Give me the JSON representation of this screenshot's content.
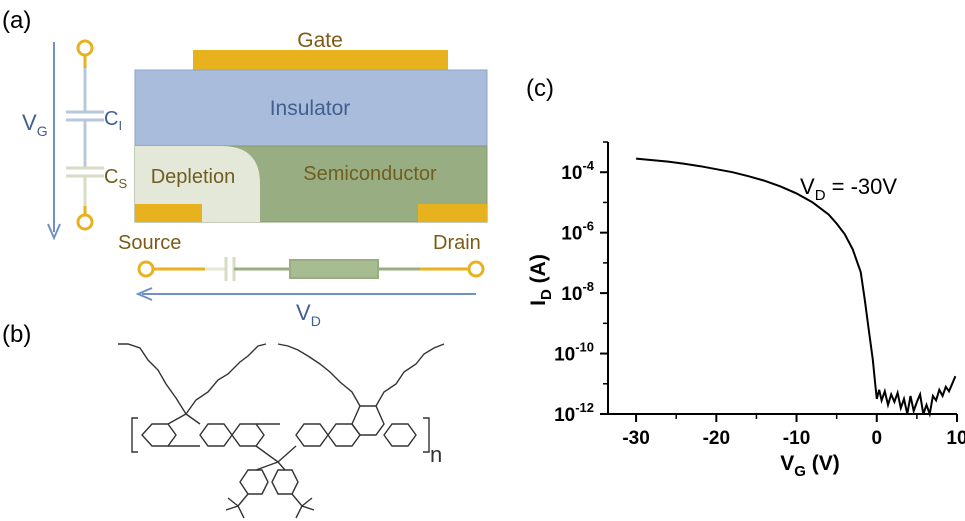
{
  "panels": {
    "a": "(a)",
    "b": "(b)",
    "c": "(c)"
  },
  "device": {
    "gate": "Gate",
    "insulator": "Insulator",
    "depletion": "Depletion",
    "semiconductor": "Semiconductor",
    "source": "Source",
    "drain": "Drain",
    "vg_main": "V",
    "vg_sub": "G",
    "ci_main": "C",
    "ci_sub": "I",
    "cs_main": "C",
    "cs_sub": "S",
    "vd_main": "V",
    "vd_sub": "D"
  },
  "colors": {
    "gold": "#E8B21E",
    "insulator": "#A9BCDC",
    "semiconductor": "#98AE82",
    "depletion": "#E3E8D8",
    "text_brown": "#7D5B16",
    "text_blue": "#41608F",
    "text_olive": "#6F5E20",
    "arrow_blue": "#6F91C6",
    "cap_gray": "#B9C7DC"
  },
  "molecule": {
    "repeat_subscript": "n"
  },
  "chart_data": {
    "type": "line",
    "title": "",
    "xlabel_main": "V",
    "xlabel_sub": "G",
    "xlabel_unit": " (V)",
    "ylabel_main": "I",
    "ylabel_sub": "D",
    "ylabel_unit": " (A)",
    "xlim": [
      -33.5,
      10
    ],
    "ylim_log10": [
      -12,
      -3
    ],
    "yscale": "log",
    "xticks": [
      -30,
      -20,
      -10,
      0,
      10
    ],
    "yticks_exp": [
      -12,
      -10,
      -8,
      -6,
      -4
    ],
    "xtick_labels": [
      "-30",
      "-20",
      "-10",
      "0",
      "10"
    ],
    "ytick_labels": [
      "10",
      "10",
      "10",
      "10",
      "10"
    ],
    "ytick_exps": [
      "-12",
      "-10",
      "-8",
      "-6",
      "-4"
    ],
    "annotation_main": "V",
    "annotation_sub": "D",
    "annotation_rest": " = -30V",
    "series": [
      {
        "x": [
          -30,
          -28,
          -26,
          -24,
          -22,
          -20,
          -18,
          -16,
          -14,
          -12,
          -10,
          -8,
          -6,
          -5,
          -4,
          -3,
          -2,
          -1.5,
          -1,
          -0.5,
          -0.2,
          0,
          0.3,
          0.6,
          1.0,
          1.4,
          1.8,
          2.2,
          2.6,
          3.0,
          3.4,
          3.8,
          4.2,
          4.6,
          5.0,
          5.4,
          5.8,
          6.2,
          6.6,
          7.0,
          7.4,
          7.8,
          8.2,
          8.6,
          9.0,
          9.4,
          9.8
        ],
        "y_log10": [
          -3.55,
          -3.6,
          -3.65,
          -3.72,
          -3.8,
          -3.9,
          -4.0,
          -4.13,
          -4.28,
          -4.47,
          -4.7,
          -5.0,
          -5.4,
          -5.7,
          -6.05,
          -6.55,
          -7.3,
          -8.2,
          -9.2,
          -10.2,
          -11.0,
          -11.5,
          -11.2,
          -11.55,
          -11.25,
          -11.7,
          -11.35,
          -11.6,
          -11.3,
          -11.8,
          -11.5,
          -12.0,
          -11.4,
          -11.9,
          -11.6,
          -11.35,
          -12.0,
          -11.7,
          -12.0,
          -11.4,
          -11.55,
          -11.2,
          -11.4,
          -11.1,
          -11.25,
          -11.0,
          -10.75
        ]
      }
    ]
  }
}
